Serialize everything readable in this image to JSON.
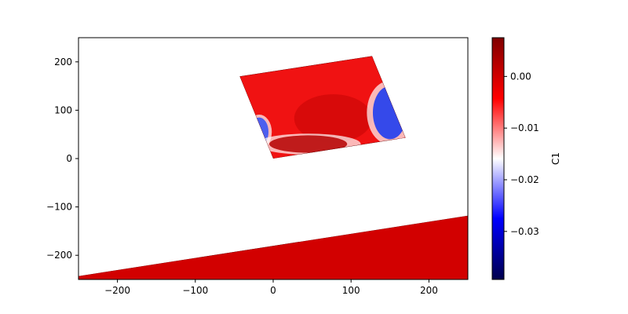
{
  "chart_data": {
    "type": "heatmap",
    "title": "",
    "xlabel": "",
    "ylabel": "",
    "xlim": [
      -250,
      250
    ],
    "ylim": [
      -250,
      250
    ],
    "x_ticks": [
      -200,
      -100,
      0,
      100,
      200
    ],
    "y_ticks": [
      200,
      100,
      0,
      -100,
      -200
    ],
    "x_tick_labels": [
      "−200",
      "−100",
      "0",
      "100",
      "200"
    ],
    "y_tick_labels": [
      "200",
      "100",
      "0",
      "−100",
      "−200"
    ],
    "grid": false,
    "colormap": "seismic",
    "colorbar": {
      "label": "C1",
      "vmin": -0.0393,
      "vmax": 0.0075,
      "ticks": [
        0.0,
        -0.01,
        -0.02,
        -0.03
      ],
      "tick_labels": [
        "0.00",
        "−0.01",
        "−0.02",
        "−0.03"
      ],
      "stops": [
        {
          "value": -0.0393,
          "color": "#00004c"
        },
        {
          "value": -0.0275,
          "color": "#0000ff"
        },
        {
          "value": -0.0159,
          "color": "#ffffff"
        },
        {
          "value": -0.0043,
          "color": "#ff0000"
        },
        {
          "value": 0.0075,
          "color": "#7f0000"
        }
      ]
    },
    "regions": [
      {
        "name": "upper-plate",
        "outline": [
          [
            -43,
            170
          ],
          [
            127,
            212
          ],
          [
            170,
            43
          ],
          [
            0,
            0
          ]
        ],
        "base_color": "#f01212",
        "features": [
          {
            "kind": "ellipse",
            "cx": 77,
            "cy": 83,
            "rx": 50,
            "ry": 50,
            "color": "#d80a0a"
          },
          {
            "kind": "patch",
            "cx": 150,
            "cy": 95,
            "rx": 22,
            "ry": 55,
            "color": "#1f3df0"
          },
          {
            "kind": "patch",
            "cx": -18,
            "cy": 55,
            "rx": 12,
            "ry": 30,
            "color": "#3a55f5"
          },
          {
            "kind": "patch",
            "cx": 45,
            "cy": 30,
            "rx": 50,
            "ry": 18,
            "color": "#b80a0a"
          }
        ]
      },
      {
        "name": "lower-band",
        "outline": [
          [
            -250,
            -243
          ],
          [
            250,
            -118
          ],
          [
            250,
            -250
          ],
          [
            -250,
            -250
          ]
        ],
        "base_color": "#d20000",
        "features": []
      }
    ]
  }
}
